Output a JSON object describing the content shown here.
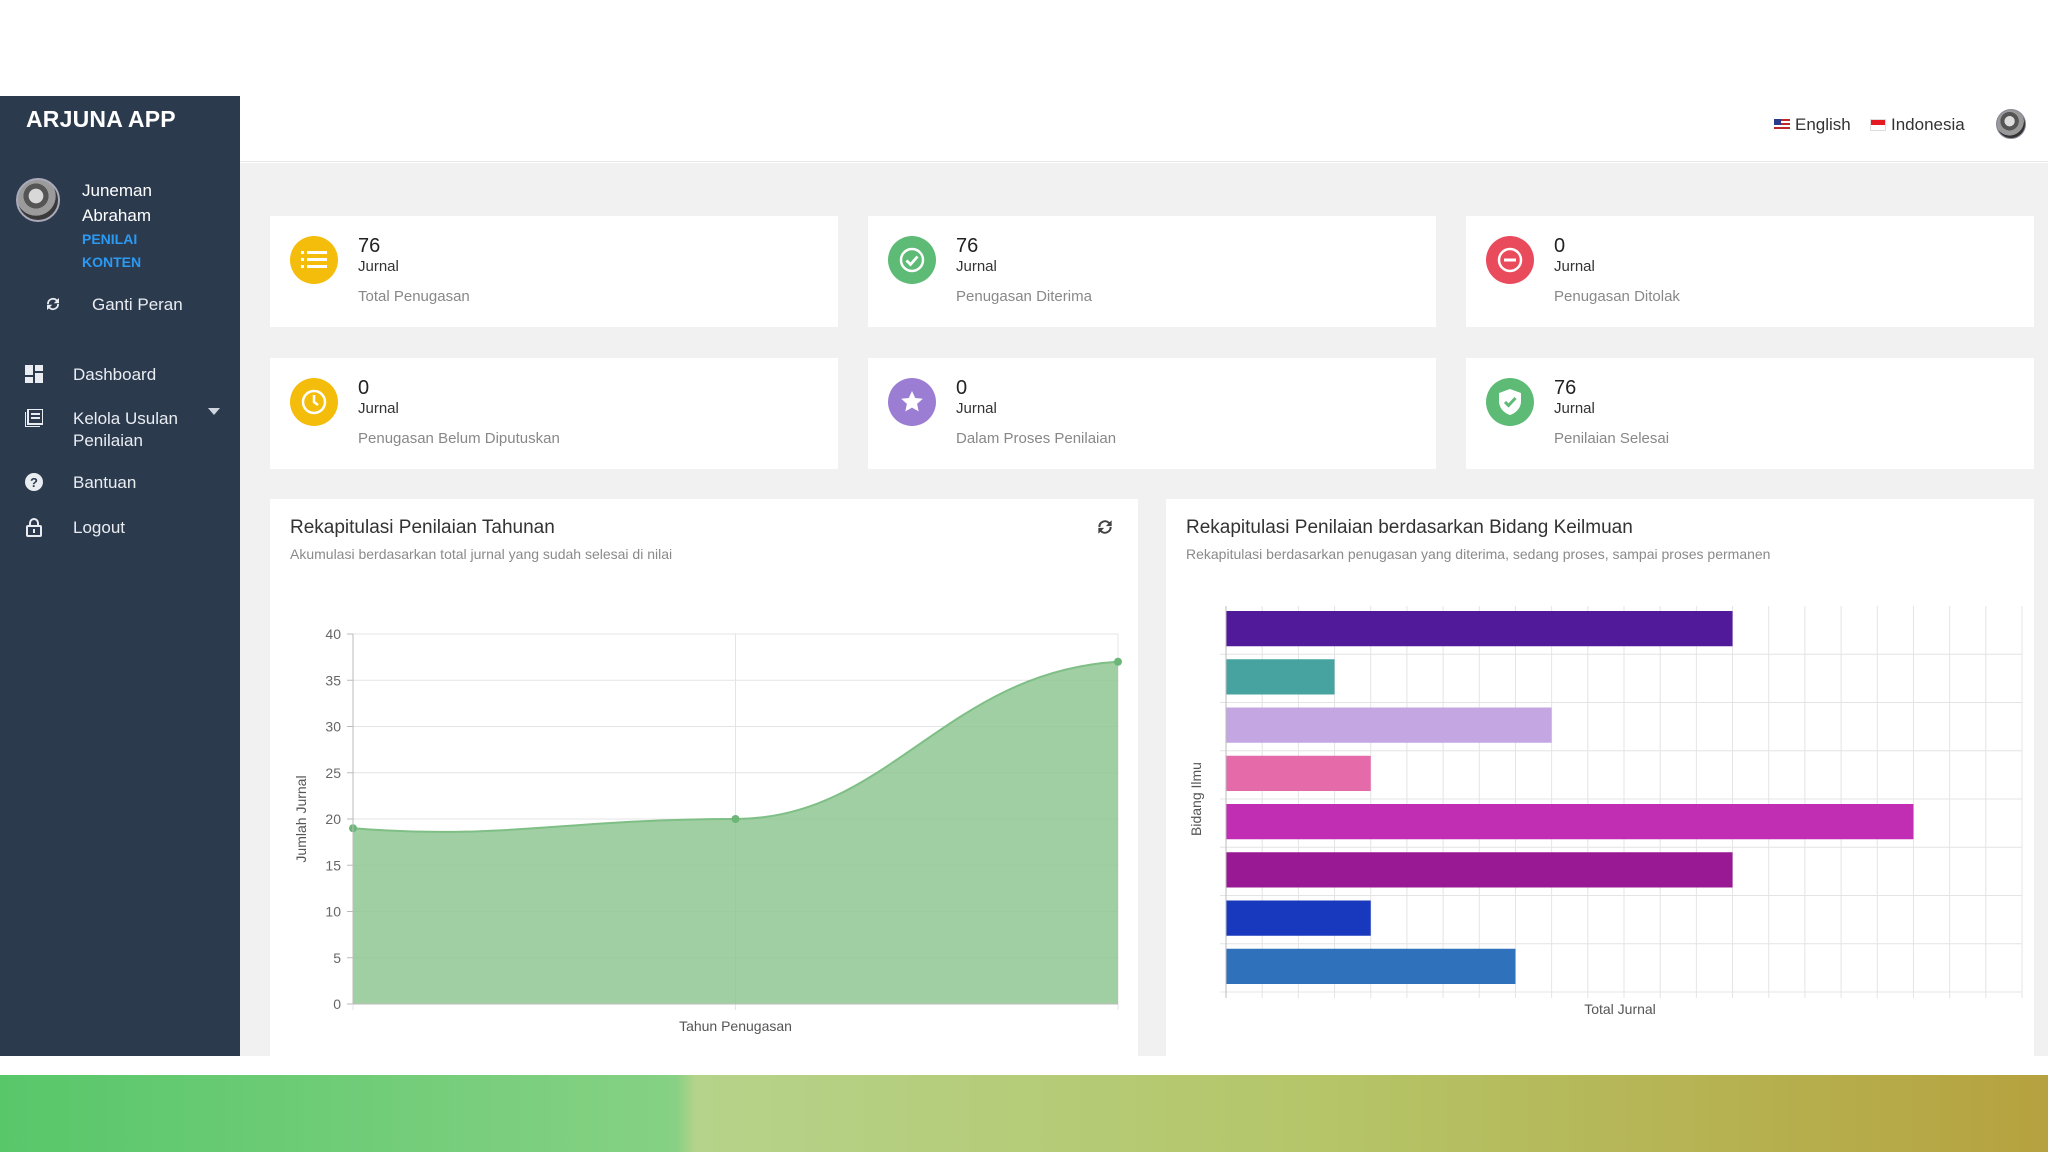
{
  "app": {
    "brand": "ARJUNA APP"
  },
  "user": {
    "name": "Juneman Abraham",
    "role": "PENILAI KONTEN",
    "switch_role": "Ganti Peran"
  },
  "sidebar": {
    "items": [
      {
        "label": "Dashboard",
        "icon": "dashboard-icon"
      },
      {
        "label": "Kelola Usulan Penilaian",
        "icon": "list-icon"
      },
      {
        "label": "Bantuan",
        "icon": "help-icon"
      },
      {
        "label": "Logout",
        "icon": "lock-icon"
      }
    ]
  },
  "header": {
    "lang_en": "English",
    "lang_id": "Indonesia"
  },
  "cards": [
    {
      "value": "76",
      "unit": "Jurnal",
      "label": "Total Penugasan",
      "icon": "list-icon",
      "color": "#f4bd0b"
    },
    {
      "value": "76",
      "unit": "Jurnal",
      "label": "Penugasan Diterima",
      "icon": "check-circle-icon",
      "color": "#5dbb75"
    },
    {
      "value": "0",
      "unit": "Jurnal",
      "label": "Penugasan Ditolak",
      "icon": "minus-circle-icon",
      "color": "#ea4b5c"
    },
    {
      "value": "0",
      "unit": "Jurnal",
      "label": "Penugasan Belum Diputuskan",
      "icon": "clock-icon",
      "color": "#f4bd0b"
    },
    {
      "value": "0",
      "unit": "Jurnal",
      "label": "Dalam Proses Penilaian",
      "icon": "star-icon",
      "color": "#9b7ed3"
    },
    {
      "value": "76",
      "unit": "Jurnal",
      "label": "Penilaian Selesai",
      "icon": "shield-check-icon",
      "color": "#5dbb75"
    }
  ],
  "panels": {
    "annual": {
      "title": "Rekapitulasi Penilaian Tahunan",
      "subtitle": "Akumulasi berdasarkan total jurnal yang sudah selesai di nilai"
    },
    "field": {
      "title": "Rekapitulasi Penilaian berdasarkan Bidang Keilmuan",
      "subtitle": "Rekapitulasi berdasarkan penugasan yang diterima, sedang proses, sampai proses permanen"
    }
  },
  "chart_data": [
    {
      "type": "area",
      "title": "Rekapitulasi Penilaian Tahunan",
      "xlabel": "Tahun Penugasan",
      "ylabel": "Jumlah Jurnal",
      "ylim": [
        0,
        40
      ],
      "yticks": [
        0,
        5,
        10,
        15,
        20,
        25,
        30,
        35,
        40
      ],
      "series": [
        {
          "values": [
            19,
            20,
            37
          ],
          "color": "#8fc794"
        }
      ],
      "grid": true
    },
    {
      "type": "bar",
      "orientation": "horizontal",
      "title": "Rekapitulasi Penilaian berdasarkan Bidang Keilmuan",
      "xlabel": "Total Jurnal",
      "ylabel": "Bidang Ilmu",
      "xlim": [
        0,
        22
      ],
      "values": [
        14,
        3,
        9,
        4,
        19,
        14,
        4,
        8
      ],
      "colors": [
        "#511a9b",
        "#46a3a0",
        "#c4a6e2",
        "#e46aa9",
        "#c12eb4",
        "#991893",
        "#1838be",
        "#3071bc"
      ],
      "grid": true
    }
  ]
}
